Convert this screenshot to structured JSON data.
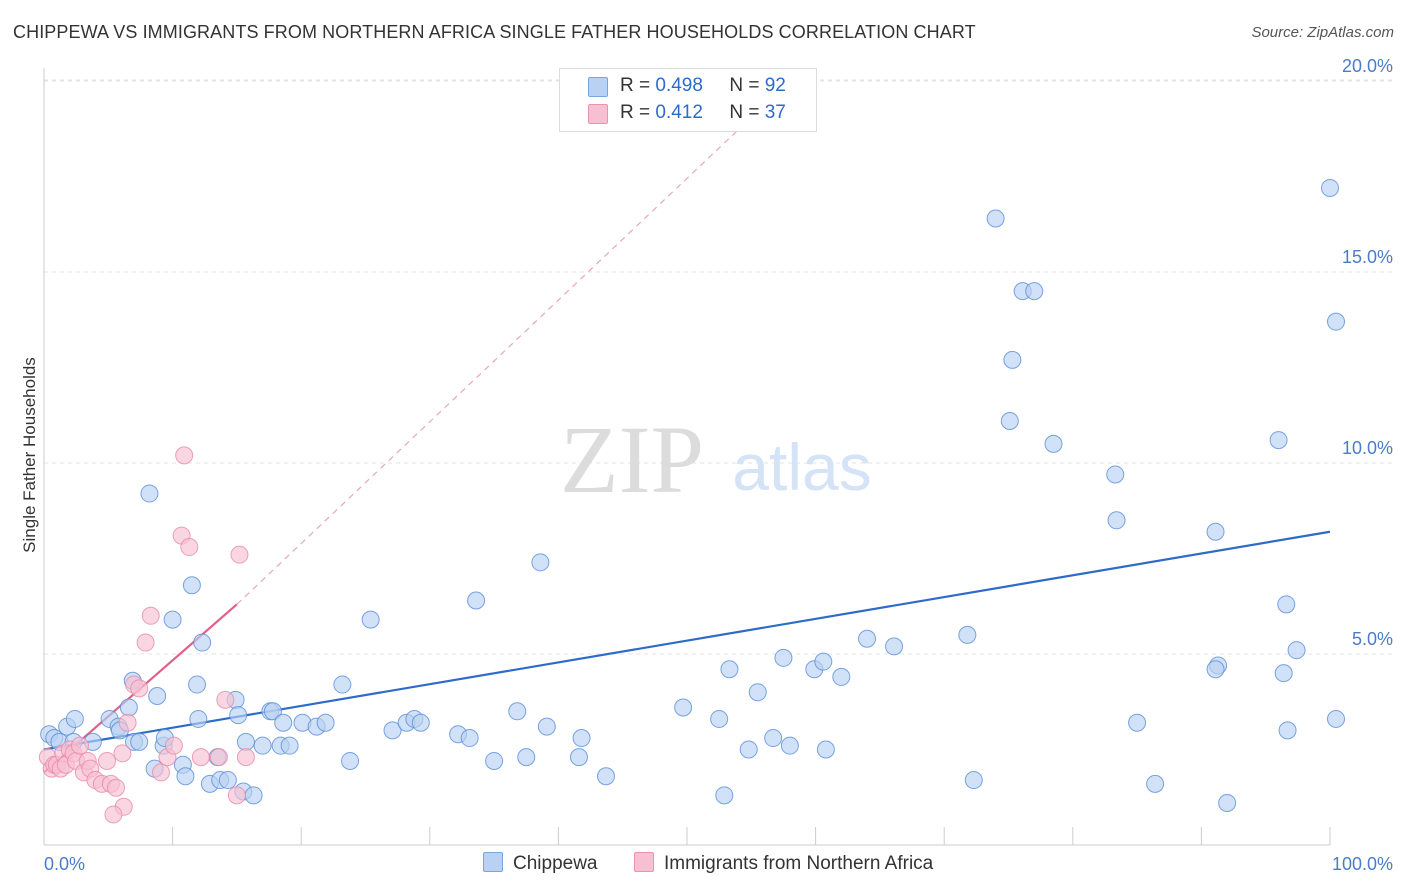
{
  "title": "CHIPPEWA VS IMMIGRANTS FROM NORTHERN AFRICA SINGLE FATHER HOUSEHOLDS CORRELATION CHART",
  "source": "Source: ZipAtlas.com",
  "watermark": {
    "zip": "ZIP",
    "atlas": "atlas"
  },
  "legend": {
    "rows": [
      {
        "r_label": "R =",
        "r_value": "0.498",
        "n_label": "N =",
        "n_value": "92",
        "color": "#b9d1f3"
      },
      {
        "r_label": "R =",
        "r_value": " 0.412",
        "n_label": "N =",
        "n_value": "37",
        "color": "#f7c0d2"
      }
    ]
  },
  "bottom_legend": [
    {
      "label": "Chippewa",
      "color": "#b9d1f3"
    },
    {
      "label": "Immigrants from Northern Africa",
      "color": "#f7c0d2"
    }
  ],
  "chart_data": {
    "type": "scatter",
    "title": "CHIPPEWA VS IMMIGRANTS FROM NORTHERN AFRICA SINGLE FATHER HOUSEHOLDS CORRELATION CHART",
    "xlabel": "",
    "ylabel": "Single Father Households",
    "xlim": [
      0,
      100
    ],
    "ylim": [
      0,
      21
    ],
    "x_tick_labels": {
      "0": "0.0%",
      "100": "100.0%"
    },
    "y_ticks": [
      5,
      10,
      15,
      20
    ],
    "y_tick_labels": [
      "5.0%",
      "10.0%",
      "15.0%",
      "20.0%"
    ],
    "series": [
      {
        "name": "Chippewa",
        "color": "#5a8fd8",
        "fill": "#b9d1f3",
        "trend": {
          "x0": 0,
          "y0": 2.5,
          "x1": 100,
          "y1": 8.2,
          "color": "#2e6bc9",
          "dashed": false
        },
        "points": [
          [
            0.4,
            2.9
          ],
          [
            0.8,
            2.8
          ],
          [
            1.2,
            2.7
          ],
          [
            1.8,
            3.1
          ],
          [
            2.3,
            2.7
          ],
          [
            3.8,
            2.7
          ],
          [
            2.4,
            3.3
          ],
          [
            5.1,
            3.3
          ],
          [
            5.8,
            3.1
          ],
          [
            5.9,
            3.0
          ],
          [
            6.6,
            3.6
          ],
          [
            6.9,
            4.3
          ],
          [
            7.0,
            2.7
          ],
          [
            7.4,
            2.7
          ],
          [
            8.2,
            9.2
          ],
          [
            8.6,
            2.0
          ],
          [
            8.8,
            3.9
          ],
          [
            9.3,
            2.6
          ],
          [
            9.4,
            2.8
          ],
          [
            10.0,
            5.9
          ],
          [
            10.8,
            2.1
          ],
          [
            11.0,
            1.8
          ],
          [
            11.5,
            6.8
          ],
          [
            11.9,
            4.2
          ],
          [
            12.0,
            3.3
          ],
          [
            12.3,
            5.3
          ],
          [
            12.9,
            1.6
          ],
          [
            13.5,
            2.3
          ],
          [
            13.7,
            1.7
          ],
          [
            14.3,
            1.7
          ],
          [
            14.9,
            3.8
          ],
          [
            15.1,
            3.4
          ],
          [
            15.5,
            1.4
          ],
          [
            15.7,
            2.7
          ],
          [
            16.3,
            1.3
          ],
          [
            17.0,
            2.6
          ],
          [
            17.6,
            3.5
          ],
          [
            17.8,
            3.5
          ],
          [
            18.4,
            2.6
          ],
          [
            18.6,
            3.2
          ],
          [
            19.1,
            2.6
          ],
          [
            20.1,
            3.2
          ],
          [
            21.2,
            3.1
          ],
          [
            21.9,
            3.2
          ],
          [
            23.2,
            4.2
          ],
          [
            23.8,
            2.2
          ],
          [
            25.4,
            5.9
          ],
          [
            27.1,
            3.0
          ],
          [
            28.2,
            3.2
          ],
          [
            28.8,
            3.3
          ],
          [
            29.3,
            3.2
          ],
          [
            32.2,
            2.9
          ],
          [
            33.6,
            6.4
          ],
          [
            33.1,
            2.8
          ],
          [
            35.0,
            2.2
          ],
          [
            36.8,
            3.5
          ],
          [
            37.5,
            2.3
          ],
          [
            38.6,
            7.4
          ],
          [
            39.1,
            3.1
          ],
          [
            41.6,
            2.3
          ],
          [
            43.7,
            1.8
          ],
          [
            41.8,
            2.8
          ],
          [
            49.7,
            3.6
          ],
          [
            52.5,
            3.3
          ],
          [
            52.9,
            1.3
          ],
          [
            53.3,
            4.6
          ],
          [
            54.8,
            2.5
          ],
          [
            55.5,
            4.0
          ],
          [
            56.7,
            2.8
          ],
          [
            57.5,
            4.9
          ],
          [
            58.0,
            2.6
          ],
          [
            59.9,
            4.6
          ],
          [
            60.8,
            2.5
          ],
          [
            60.6,
            4.8
          ],
          [
            62.0,
            4.4
          ],
          [
            64.0,
            5.4
          ],
          [
            66.1,
            5.2
          ],
          [
            71.8,
            5.5
          ],
          [
            72.3,
            1.7
          ],
          [
            74.0,
            16.4
          ],
          [
            75.3,
            12.7
          ],
          [
            75.1,
            11.1
          ],
          [
            76.1,
            14.5
          ],
          [
            77.0,
            14.5
          ],
          [
            78.5,
            10.5
          ],
          [
            83.4,
            8.5
          ],
          [
            83.3,
            9.7
          ],
          [
            85.0,
            3.2
          ],
          [
            86.4,
            1.6
          ],
          [
            91.1,
            8.2
          ],
          [
            91.3,
            4.7
          ],
          [
            91.1,
            4.6
          ],
          [
            92.0,
            1.1
          ],
          [
            96.0,
            10.6
          ],
          [
            96.4,
            4.5
          ],
          [
            96.6,
            6.3
          ],
          [
            96.7,
            3.0
          ],
          [
            97.4,
            5.1
          ],
          [
            100.0,
            17.2
          ],
          [
            100.6,
            13.7
          ],
          [
            101.0,
            3.3
          ]
        ]
      },
      {
        "name": "Immigrants from Northern Africa",
        "color": "#e88aa8",
        "fill": "#f7c0d2",
        "trend": {
          "x0": 0,
          "y0": 1.9,
          "x1": 15,
          "y1": 6.3,
          "color": "#e0608a",
          "dashed": false
        },
        "trend_extension": {
          "x0": 15,
          "y0": 6.3,
          "x1": 58,
          "y1": 20.0,
          "color": "#e8a6bb",
          "dashed": true
        },
        "points": [
          [
            0.3,
            2.3
          ],
          [
            0.6,
            2.0
          ],
          [
            0.8,
            2.1
          ],
          [
            1.0,
            2.1
          ],
          [
            1.3,
            2.0
          ],
          [
            1.5,
            2.4
          ],
          [
            1.7,
            2.1
          ],
          [
            2.0,
            2.5
          ],
          [
            2.3,
            2.4
          ],
          [
            2.5,
            2.2
          ],
          [
            2.8,
            2.6
          ],
          [
            3.1,
            1.9
          ],
          [
            3.4,
            2.2
          ],
          [
            3.6,
            2.0
          ],
          [
            4.0,
            1.7
          ],
          [
            4.5,
            1.6
          ],
          [
            4.9,
            2.2
          ],
          [
            5.2,
            1.6
          ],
          [
            5.6,
            1.5
          ],
          [
            6.2,
            1.0
          ],
          [
            5.4,
            0.8
          ],
          [
            6.1,
            2.4
          ],
          [
            6.5,
            3.2
          ],
          [
            7.0,
            4.2
          ],
          [
            7.4,
            4.1
          ],
          [
            7.9,
            5.3
          ],
          [
            8.3,
            6.0
          ],
          [
            9.1,
            1.9
          ],
          [
            9.6,
            2.3
          ],
          [
            10.1,
            2.6
          ],
          [
            10.9,
            10.2
          ],
          [
            10.7,
            8.1
          ],
          [
            11.3,
            7.8
          ],
          [
            12.2,
            2.3
          ],
          [
            13.6,
            2.3
          ],
          [
            14.1,
            3.8
          ],
          [
            15.2,
            7.6
          ],
          [
            15.0,
            1.3
          ],
          [
            15.7,
            2.3
          ]
        ]
      }
    ]
  }
}
